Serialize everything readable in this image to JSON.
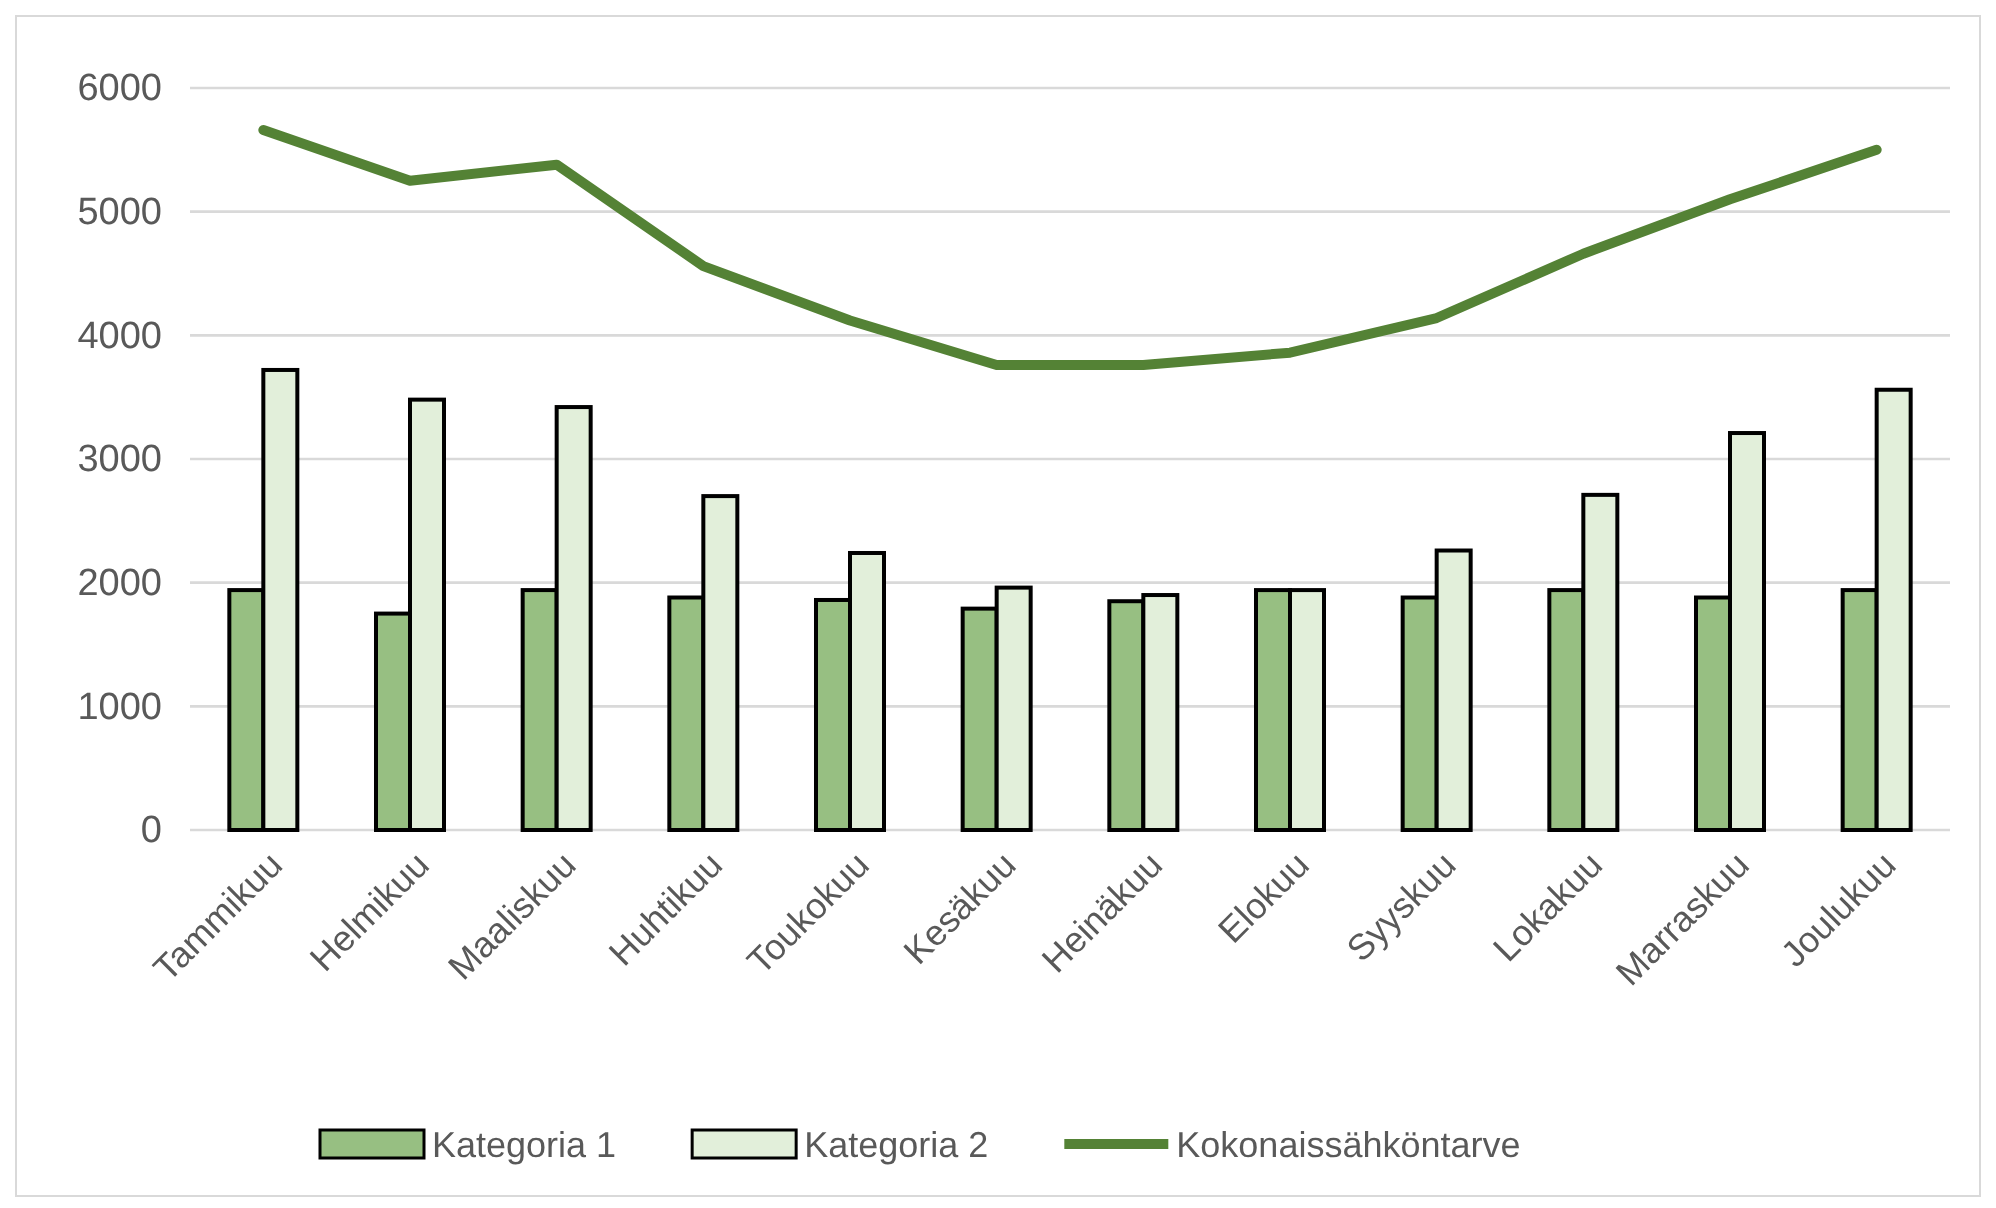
{
  "chart_data": {
    "type": "bar",
    "categories": [
      "Tammikuu",
      "Helmikuu",
      "Maaliskuu",
      "Huhtikuu",
      "Toukokuu",
      "Kesäkuu",
      "Heinäkuu",
      "Elokuu",
      "Syyskuu",
      "Lokakuu",
      "Marraskuu",
      "Joulukuu"
    ],
    "series": [
      {
        "name": "Kategoria 1",
        "color": "#97bf82",
        "values": [
          1940,
          1750,
          1940,
          1880,
          1860,
          1790,
          1850,
          1940,
          1880,
          1940,
          1880,
          1940
        ]
      },
      {
        "name": "Kategoria 2",
        "color": "#e2efda",
        "values": [
          3720,
          3480,
          3420,
          2700,
          2240,
          1960,
          1900,
          1940,
          2260,
          2710,
          3210,
          3560
        ]
      },
      {
        "name": "Kokonaissähköntarve",
        "type": "line",
        "color": "#548235",
        "values": [
          5660,
          5250,
          5380,
          4560,
          4120,
          3760,
          3760,
          3860,
          4140,
          4660,
          5100,
          5500
        ]
      }
    ],
    "ylim": [
      0,
      6000
    ],
    "yticks": [
      0,
      1000,
      2000,
      3000,
      4000,
      5000,
      6000
    ],
    "grid": "y",
    "legend": "bottom"
  }
}
